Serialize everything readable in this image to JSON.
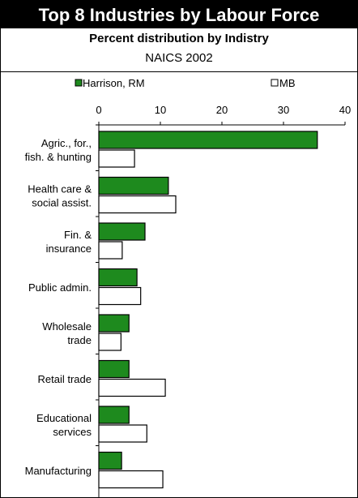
{
  "header": {
    "title": "Top 8 Industries by Labour Force",
    "subtitle": "Percent distribution by Indistry",
    "note": "NAICS 2002"
  },
  "colors": {
    "harrison": "#1e8a1e",
    "mb": "#ffffff",
    "stroke": "#000000"
  },
  "chart_data": {
    "type": "bar",
    "orientation": "horizontal",
    "categories": [
      [
        "Agric., for.,",
        "fish. & hunting"
      ],
      [
        "Health care &",
        "social assist."
      ],
      [
        "Fin. &",
        "insurance"
      ],
      [
        "Public admin."
      ],
      [
        "Wholesale",
        "trade"
      ],
      [
        "Retail trade"
      ],
      [
        "Educational",
        "services"
      ],
      [
        "Manufacturing"
      ]
    ],
    "series": [
      {
        "name": "Harrison, RM",
        "values": [
          35.5,
          11.3,
          7.5,
          6.2,
          4.9,
          4.9,
          4.9,
          3.7
        ]
      },
      {
        "name": "MB",
        "values": [
          5.8,
          12.5,
          3.8,
          6.8,
          3.6,
          10.8,
          7.8,
          10.4
        ]
      }
    ],
    "xticks": [
      "0",
      "10",
      "20",
      "30",
      "40"
    ],
    "xlim": [
      0,
      40
    ],
    "legend_position": "top"
  }
}
